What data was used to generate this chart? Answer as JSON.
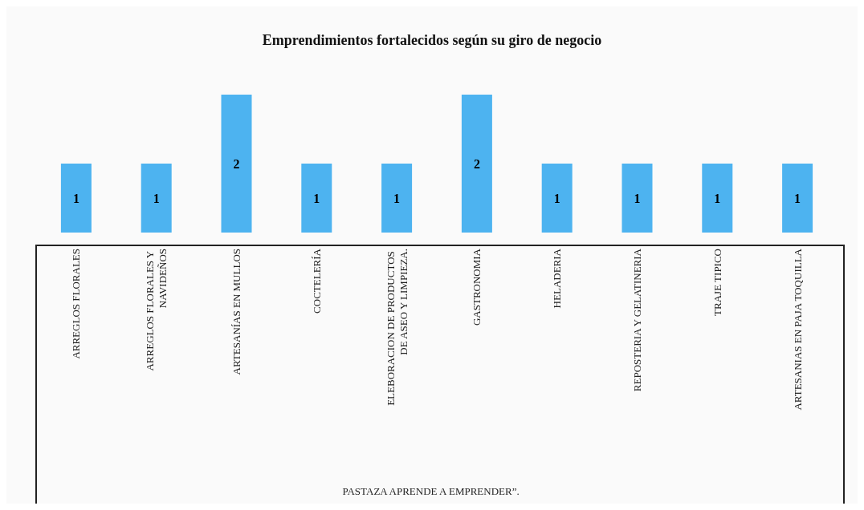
{
  "chart_data": {
    "type": "bar",
    "title": "Emprendimientos fortalecidos según su giro de negocio",
    "categories": [
      "ARREGLOS FLORALES",
      "ARREGLOS FLORALES Y NAVIDEÑOS",
      "ARTESANÍAS EN MULLOS",
      "COCTELERÍA",
      "ELEBORACION DE PRODUCTOS DE ASEO Y LIMPIEZA.",
      "GASTRONOMIA",
      "HELADERIA",
      "REPOSTERIA Y GELATINERIA",
      "TRAJE TIPICO",
      "ARTESANIAS EN PAJA TOQUILLA"
    ],
    "values": [
      1,
      1,
      2,
      1,
      1,
      2,
      1,
      1,
      1,
      1
    ],
    "color": "#4db3f0",
    "data_labels": true,
    "grid": false,
    "annotations": [
      "PASTAZA APRENDE A EMPRENDER”."
    ]
  }
}
